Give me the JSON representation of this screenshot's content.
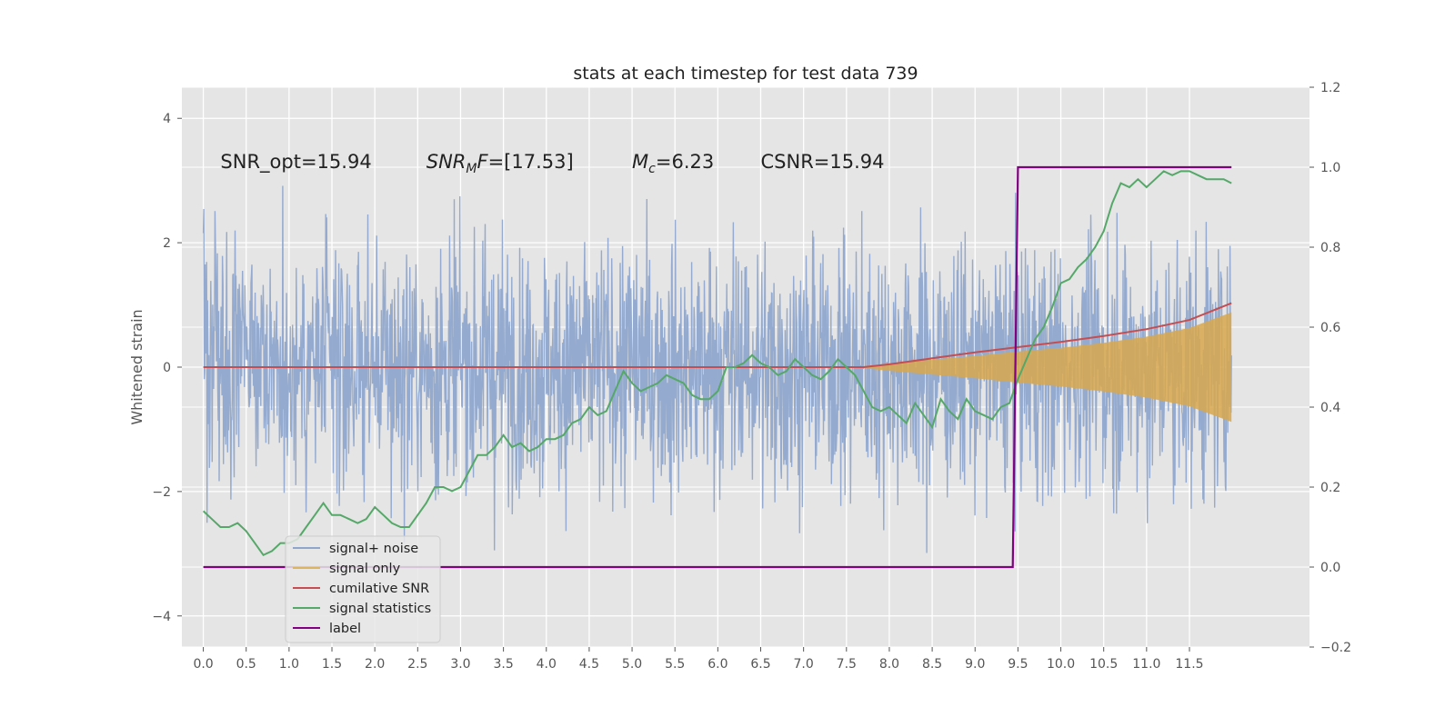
{
  "chart_data": {
    "type": "line",
    "title": "stats at each timestep for test data 739",
    "ylabel": "Whitened strain",
    "xlabel": "",
    "xlim": [
      -0.25,
      12.9
    ],
    "ylim": [
      -4.5,
      4.5
    ],
    "y2lim": [
      -0.2,
      1.2
    ],
    "x_ticks": [
      "0.0",
      "0.5",
      "1.0",
      "1.5",
      "2.0",
      "2.5",
      "3.0",
      "3.5",
      "4.0",
      "4.5",
      "5.0",
      "5.5",
      "6.0",
      "6.5",
      "7.0",
      "7.5",
      "8.0",
      "8.5",
      "9.0",
      "9.5",
      "10.0",
      "10.5",
      "11.0",
      "11.5"
    ],
    "y_ticks": [
      "−4",
      "−2",
      "0",
      "2",
      "4"
    ],
    "y2_ticks": [
      "−0.2",
      "0.0",
      "0.2",
      "0.4",
      "0.6",
      "0.8",
      "1.0",
      "1.2"
    ],
    "grid": true,
    "legend_position": "lower-left",
    "annotations": [
      {
        "x": 0.2,
        "y": 3.3,
        "text": "SNR_opt=15.94"
      },
      {
        "x": 2.6,
        "y": 3.3,
        "text": "SNR_MF=[17.53]"
      },
      {
        "x": 5.0,
        "y": 3.3,
        "text": "M_c=6.23"
      },
      {
        "x": 6.5,
        "y": 3.3,
        "text": "CSNR=15.94"
      }
    ],
    "series": [
      {
        "name": "signal+ noise",
        "axis": "left",
        "color": "#8fa6cc",
        "envelope_y": [
          -2.6,
          2.7
        ],
        "x_range": [
          0.0,
          11.99
        ]
      },
      {
        "name": "signal only",
        "axis": "left",
        "color": "#ddb45f",
        "x": [
          0.0,
          7.6,
          8.0,
          8.5,
          9.0,
          9.5,
          10.0,
          10.5,
          11.0,
          11.5,
          11.99
        ],
        "amplitude": [
          0.0,
          0.0,
          0.06,
          0.12,
          0.18,
          0.25,
          0.31,
          0.39,
          0.49,
          0.63,
          0.88
        ]
      },
      {
        "name": "cumilative SNR",
        "axis": "right",
        "color": "#c44e52",
        "x": [
          0.0,
          7.7,
          8.0,
          8.5,
          9.0,
          9.5,
          10.0,
          10.5,
          11.0,
          11.5,
          11.99
        ],
        "values": [
          0.5,
          0.5,
          0.507,
          0.522,
          0.537,
          0.55,
          0.563,
          0.578,
          0.595,
          0.618,
          0.66
        ]
      },
      {
        "name": "signal statistics",
        "axis": "right",
        "color": "#55a868",
        "x": [
          0.0,
          0.1,
          0.2,
          0.3,
          0.4,
          0.5,
          0.6,
          0.7,
          0.8,
          0.9,
          1.0,
          1.1,
          1.2,
          1.3,
          1.4,
          1.5,
          1.6,
          1.7,
          1.8,
          1.9,
          2.0,
          2.1,
          2.2,
          2.3,
          2.4,
          2.5,
          2.6,
          2.7,
          2.8,
          2.9,
          3.0,
          3.1,
          3.2,
          3.3,
          3.4,
          3.5,
          3.6,
          3.7,
          3.8,
          3.9,
          4.0,
          4.1,
          4.2,
          4.3,
          4.4,
          4.5,
          4.6,
          4.7,
          4.8,
          4.9,
          5.0,
          5.1,
          5.2,
          5.3,
          5.4,
          5.5,
          5.6,
          5.7,
          5.8,
          5.9,
          6.0,
          6.1,
          6.2,
          6.3,
          6.4,
          6.5,
          6.6,
          6.7,
          6.8,
          6.9,
          7.0,
          7.1,
          7.2,
          7.3,
          7.4,
          7.5,
          7.6,
          7.7,
          7.8,
          7.9,
          8.0,
          8.1,
          8.2,
          8.3,
          8.4,
          8.5,
          8.6,
          8.7,
          8.8,
          8.9,
          9.0,
          9.1,
          9.2,
          9.3,
          9.4,
          9.5,
          9.6,
          9.7,
          9.8,
          9.9,
          10.0,
          10.1,
          10.2,
          10.3,
          10.4,
          10.5,
          10.6,
          10.7,
          10.8,
          10.9,
          11.0,
          11.1,
          11.2,
          11.3,
          11.4,
          11.5,
          11.6,
          11.7,
          11.8,
          11.9,
          11.99
        ],
        "values": [
          0.14,
          0.12,
          0.1,
          0.1,
          0.11,
          0.09,
          0.06,
          0.03,
          0.04,
          0.06,
          0.06,
          0.07,
          0.1,
          0.13,
          0.16,
          0.13,
          0.13,
          0.12,
          0.11,
          0.12,
          0.15,
          0.13,
          0.11,
          0.1,
          0.1,
          0.13,
          0.16,
          0.2,
          0.2,
          0.19,
          0.2,
          0.24,
          0.28,
          0.28,
          0.3,
          0.33,
          0.3,
          0.31,
          0.29,
          0.3,
          0.32,
          0.32,
          0.33,
          0.36,
          0.37,
          0.4,
          0.38,
          0.39,
          0.44,
          0.49,
          0.46,
          0.44,
          0.45,
          0.46,
          0.48,
          0.47,
          0.46,
          0.43,
          0.42,
          0.42,
          0.44,
          0.5,
          0.5,
          0.51,
          0.53,
          0.51,
          0.5,
          0.48,
          0.49,
          0.52,
          0.5,
          0.48,
          0.47,
          0.49,
          0.52,
          0.5,
          0.48,
          0.44,
          0.4,
          0.39,
          0.4,
          0.38,
          0.36,
          0.41,
          0.38,
          0.35,
          0.42,
          0.39,
          0.37,
          0.42,
          0.39,
          0.38,
          0.37,
          0.4,
          0.41,
          0.47,
          0.52,
          0.57,
          0.6,
          0.65,
          0.71,
          0.72,
          0.75,
          0.77,
          0.8,
          0.84,
          0.91,
          0.96,
          0.95,
          0.97,
          0.95,
          0.97,
          0.99,
          0.98,
          0.99,
          0.99,
          0.98,
          0.97,
          0.97,
          0.97,
          0.96
        ]
      },
      {
        "name": "label",
        "axis": "right",
        "color": "#800080",
        "x": [
          0.0,
          9.44,
          9.5,
          11.99
        ],
        "values": [
          0.0,
          0.0,
          1.0,
          1.0
        ]
      }
    ]
  }
}
